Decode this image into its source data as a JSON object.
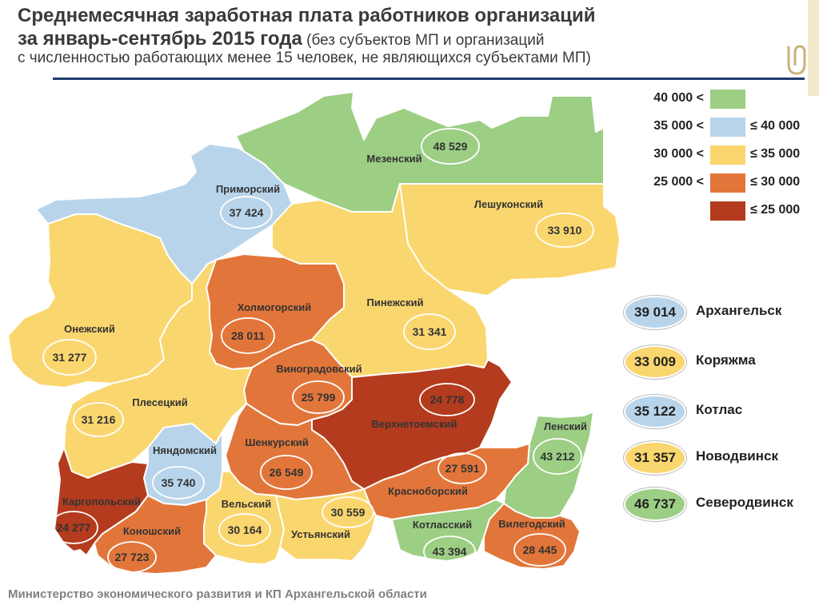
{
  "header": {
    "title_line1": "Среднемесячная заработная плата работников организаций",
    "title_line2_bold": "за январь-сентябрь 2015 года",
    "title_line2_normal": " (без субъектов МП и организаций",
    "title_line3": "с численностью работающих менее 15 человек, не являющихся субъектами МП)"
  },
  "colors": {
    "green": "#9cce84",
    "blue": "#b8d4ea",
    "yellow": "#fad66e",
    "orange": "#e2763a",
    "red": "#b43b1e",
    "header_rule": "#1f3a6e"
  },
  "legend": {
    "rows": [
      {
        "lo": "40 000 <",
        "hi": "",
        "color": "green"
      },
      {
        "lo": "35 000 <",
        "hi": "≤ 40 000",
        "color": "blue"
      },
      {
        "lo": "30 000 <",
        "hi": "≤ 35 000",
        "color": "yellow"
      },
      {
        "lo": "25 000 <",
        "hi": "≤ 30 000",
        "color": "orange"
      },
      {
        "lo": "",
        "hi": "≤ 25 000",
        "color": "red"
      }
    ]
  },
  "regions": [
    {
      "id": "mezensky",
      "name": "Мезенский",
      "value": "48 529",
      "color": "green"
    },
    {
      "id": "primorsky",
      "name": "Приморский",
      "value": "37 424",
      "color": "blue"
    },
    {
      "id": "leshukonsky",
      "name": "Лешуконский",
      "value": "33 910",
      "color": "yellow"
    },
    {
      "id": "kholmogorsky",
      "name": "Холмогорский",
      "value": "28 011",
      "color": "orange"
    },
    {
      "id": "pinezhsky",
      "name": "Пинежский",
      "value": "31 341",
      "color": "yellow"
    },
    {
      "id": "onezhsky",
      "name": "Онежский",
      "value": "31 277",
      "color": "yellow"
    },
    {
      "id": "vinogradovsky",
      "name": "Виноградовский",
      "value": "25 799",
      "color": "orange"
    },
    {
      "id": "verkhnetoemsky",
      "name": "Верхнетоемский",
      "value": "24 778",
      "color": "red"
    },
    {
      "id": "plesetsky",
      "name": "Плесецкий",
      "value": "31 216",
      "color": "yellow"
    },
    {
      "id": "lensky",
      "name": "Ленский",
      "value": "43 212",
      "color": "green"
    },
    {
      "id": "nyandomsky",
      "name": "Няндомский",
      "value": "35 740",
      "color": "blue"
    },
    {
      "id": "shenkursky",
      "name": "Шенкурский",
      "value": "26 549",
      "color": "orange"
    },
    {
      "id": "krasnoborsky",
      "name": "Красноборский",
      "value": "27 591",
      "color": "orange"
    },
    {
      "id": "kargopolsky",
      "name": "Каргопольский",
      "value": "24 277",
      "color": "red"
    },
    {
      "id": "velsky",
      "name": "Вельский",
      "value": "30 164",
      "color": "yellow"
    },
    {
      "id": "ustyansky",
      "name": "Устьянский",
      "value": "30 559",
      "color": "yellow"
    },
    {
      "id": "kotlassky",
      "name": "Котласский",
      "value": "43 394",
      "color": "green"
    },
    {
      "id": "vilegodsky",
      "name": "Вилегодский",
      "value": "28 445",
      "color": "orange"
    },
    {
      "id": "konoshsky",
      "name": "Коношский",
      "value": "27 723",
      "color": "orange"
    }
  ],
  "cities": [
    {
      "value": "39 014",
      "name": "Архангельск",
      "color": "blue"
    },
    {
      "value": "33 009",
      "name": "Коряжма",
      "color": "yellow"
    },
    {
      "value": "35 122",
      "name": "Котлас",
      "color": "blue"
    },
    {
      "value": "31 357",
      "name": "Новодвинск",
      "color": "yellow"
    },
    {
      "value": "46 737",
      "name": "Северодвинск",
      "color": "green"
    }
  ],
  "footer": "Министерство экономического развития и КП Архангельской области"
}
